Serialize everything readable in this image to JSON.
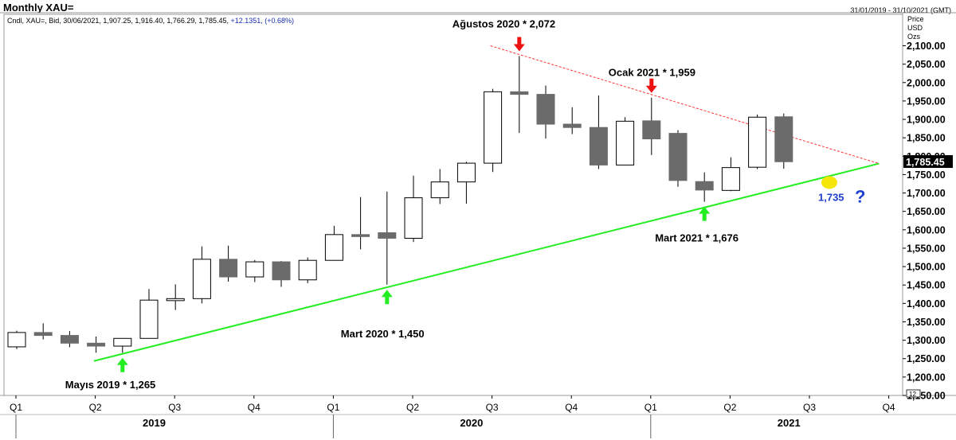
{
  "header": {
    "title": "Monthly XAU=",
    "info_prefix": "Cndl, XAU=, Bid, 30/06/2021, 1,907.25, 1,916.40, 1,766.29, 1,785.45,",
    "info_change": "+12.1351, (+0.68%)",
    "date_range": "31/01/2019 - 31/10/2021 (GMT)",
    "units": [
      "Price",
      "USD",
      "Ozs"
    ],
    "scale_box": "12"
  },
  "colors": {
    "up_fill": "#ffffff",
    "down_fill": "#6b6b6b",
    "support_line": "#22ee22",
    "resistance_line": "#ff3333",
    "arrow_up": "#22ee22",
    "arrow_down": "#ee1111",
    "projection_dot": "#f5e60a",
    "projection_text": "#1f3fd0",
    "last_price_bg": "#000000"
  },
  "chart_data": {
    "type": "candlestick",
    "series_name": "XAU=",
    "ylim": [
      1150,
      2140
    ],
    "yticks": [
      1150,
      1200,
      1250,
      1300,
      1350,
      1400,
      1450,
      1500,
      1550,
      1600,
      1650,
      1700,
      1750,
      1800,
      1850,
      1900,
      1950,
      2000,
      2050,
      2100
    ],
    "ytick_labels": [
      "1,150.00",
      "1,200.00",
      "1,250.00",
      "1,300.00",
      "1,350.00",
      "1,400.00",
      "1,450.00",
      "1,500.00",
      "1,550.00",
      "1,600.00",
      "1,650.00",
      "1,700.00",
      "1,750.00",
      "1,800.00",
      "1,850.00",
      "1,900.00",
      "1,950.00",
      "2,000.00",
      "2,050.00",
      "2,100.00"
    ],
    "quarter_ticks": [
      "Q1",
      "Q2",
      "Q3",
      "Q4",
      "Q1",
      "Q2",
      "Q3",
      "Q4",
      "Q1",
      "Q2",
      "Q3",
      "Q4"
    ],
    "years": [
      "2019",
      "2020",
      "2021"
    ],
    "last_price": "1,785.45",
    "candles": [
      {
        "date": "2019-01",
        "open": 1282,
        "high": 1326,
        "low": 1276,
        "close": 1321
      },
      {
        "date": "2019-02",
        "open": 1321,
        "high": 1346,
        "low": 1302,
        "close": 1313
      },
      {
        "date": "2019-03",
        "open": 1313,
        "high": 1325,
        "low": 1281,
        "close": 1292
      },
      {
        "date": "2019-04",
        "open": 1292,
        "high": 1310,
        "low": 1266,
        "close": 1284
      },
      {
        "date": "2019-05",
        "open": 1284,
        "high": 1305,
        "low": 1266,
        "close": 1305
      },
      {
        "date": "2019-06",
        "open": 1305,
        "high": 1439,
        "low": 1305,
        "close": 1409
      },
      {
        "date": "2019-07",
        "open": 1409,
        "high": 1452,
        "low": 1382,
        "close": 1413
      },
      {
        "date": "2019-08",
        "open": 1413,
        "high": 1555,
        "low": 1400,
        "close": 1520
      },
      {
        "date": "2019-09",
        "open": 1520,
        "high": 1557,
        "low": 1459,
        "close": 1472
      },
      {
        "date": "2019-10",
        "open": 1472,
        "high": 1518,
        "low": 1458,
        "close": 1513
      },
      {
        "date": "2019-11",
        "open": 1513,
        "high": 1515,
        "low": 1445,
        "close": 1464
      },
      {
        "date": "2019-12",
        "open": 1464,
        "high": 1525,
        "low": 1455,
        "close": 1517
      },
      {
        "date": "2020-01",
        "open": 1517,
        "high": 1611,
        "low": 1517,
        "close": 1587
      },
      {
        "date": "2020-02",
        "open": 1587,
        "high": 1689,
        "low": 1547,
        "close": 1585
      },
      {
        "date": "2020-03",
        "open": 1592,
        "high": 1704,
        "low": 1451,
        "close": 1577
      },
      {
        "date": "2020-04",
        "open": 1577,
        "high": 1747,
        "low": 1567,
        "close": 1687
      },
      {
        "date": "2020-05",
        "open": 1687,
        "high": 1765,
        "low": 1670,
        "close": 1730
      },
      {
        "date": "2020-06",
        "open": 1730,
        "high": 1785,
        "low": 1671,
        "close": 1781
      },
      {
        "date": "2020-07",
        "open": 1781,
        "high": 1983,
        "low": 1757,
        "close": 1975
      },
      {
        "date": "2020-08",
        "open": 1975,
        "high": 2072,
        "low": 1863,
        "close": 1968
      },
      {
        "date": "2020-09",
        "open": 1968,
        "high": 1992,
        "low": 1848,
        "close": 1887
      },
      {
        "date": "2020-10",
        "open": 1887,
        "high": 1933,
        "low": 1860,
        "close": 1878
      },
      {
        "date": "2020-11",
        "open": 1878,
        "high": 1965,
        "low": 1765,
        "close": 1776
      },
      {
        "date": "2020-12",
        "open": 1776,
        "high": 1906,
        "low": 1776,
        "close": 1895
      },
      {
        "date": "2021-01",
        "open": 1896,
        "high": 1959,
        "low": 1803,
        "close": 1847
      },
      {
        "date": "2021-02",
        "open": 1862,
        "high": 1871,
        "low": 1717,
        "close": 1734
      },
      {
        "date": "2021-03",
        "open": 1731,
        "high": 1756,
        "low": 1676,
        "close": 1708
      },
      {
        "date": "2021-04",
        "open": 1707,
        "high": 1797,
        "low": 1705,
        "close": 1769
      },
      {
        "date": "2021-05",
        "open": 1770,
        "high": 1913,
        "low": 1765,
        "close": 1906
      },
      {
        "date": "2021-06",
        "open": 1907,
        "high": 1916,
        "low": 1766,
        "close": 1785
      }
    ],
    "support_line": {
      "from": {
        "date": "2019-05",
        "value": 1250
      },
      "to": {
        "date": "2021-09",
        "value": 1780
      }
    },
    "resistance_line": {
      "from": {
        "date": "2020-07",
        "value": 2100
      },
      "to": {
        "date": "2021-09",
        "value": 1780
      }
    },
    "annotations": [
      {
        "text": "Mayıs 2019 * 1,265",
        "date": "2019-05",
        "value": 1265,
        "arrow": "up"
      },
      {
        "text": "Mart 2020 * 1,450",
        "date": "2020-03",
        "value": 1450,
        "arrow": "up"
      },
      {
        "text": "Ağustos 2020 * 2,072",
        "date": "2020-08",
        "value": 2072,
        "arrow": "down"
      },
      {
        "text": "Ocak 2021 * 1,959",
        "date": "2021-01",
        "value": 1959,
        "arrow": "down"
      },
      {
        "text": "Mart 2021 * 1,676",
        "date": "2021-03",
        "value": 1676,
        "arrow": "up"
      }
    ],
    "projection": {
      "value_label": "1,735",
      "mark": "?",
      "date": "2021-07",
      "value": 1735
    }
  }
}
